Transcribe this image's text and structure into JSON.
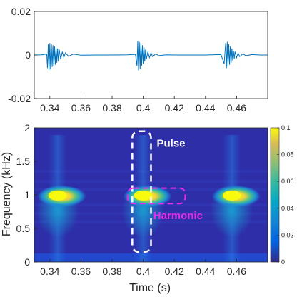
{
  "chart_data": [
    {
      "type": "line",
      "series": [
        {
          "description_free": true,
          "x": [
            0.33,
            0.335,
            0.338,
            0.3385,
            0.339,
            0.3395,
            0.34,
            0.3405,
            0.341,
            0.3415,
            0.342,
            0.3425,
            0.343,
            0.3435,
            0.344,
            0.3445,
            0.345,
            0.3455,
            0.346,
            0.347,
            0.348,
            0.349,
            0.35,
            0.352,
            0.355,
            0.36,
            0.37,
            0.38,
            0.39,
            0.395,
            0.396,
            0.3965,
            0.397,
            0.3975,
            0.398,
            0.3985,
            0.399,
            0.3995,
            0.4,
            0.4005,
            0.401,
            0.4015,
            0.402,
            0.403,
            0.404,
            0.405,
            0.406,
            0.408,
            0.41,
            0.415,
            0.42,
            0.43,
            0.44,
            0.45,
            0.452,
            0.453,
            0.4535,
            0.454,
            0.4545,
            0.455,
            0.4555,
            0.456,
            0.4565,
            0.457,
            0.4575,
            0.458,
            0.4585,
            0.459,
            0.46,
            0.461,
            0.462,
            0.464,
            0.466,
            0.47,
            0.475,
            0.48
          ],
          "y": [
            0.0,
            0.0001,
            0.0005,
            -0.006,
            0.005,
            -0.007,
            0.0055,
            -0.0065,
            0.005,
            -0.0055,
            0.0045,
            -0.005,
            0.004,
            -0.0045,
            0.0035,
            -0.0035,
            0.003,
            -0.003,
            0.0025,
            -0.002,
            0.0015,
            -0.0012,
            0.001,
            -0.0006,
            0.0004,
            -0.0001,
            0.0,
            0.0,
            0.0001,
            0.0003,
            -0.005,
            0.0065,
            -0.007,
            0.006,
            -0.0065,
            0.0055,
            -0.005,
            0.0045,
            -0.004,
            0.0035,
            -0.003,
            0.0025,
            -0.002,
            0.0015,
            -0.0012,
            0.001,
            -0.0007,
            0.0005,
            -0.0003,
            0.0001,
            0.0,
            0.0,
            0.0,
            0.0002,
            -0.004,
            0.0055,
            -0.006,
            0.006,
            -0.0055,
            0.005,
            -0.0045,
            0.004,
            -0.0035,
            0.003,
            -0.0025,
            0.002,
            -0.0018,
            0.0015,
            -0.0012,
            0.0009,
            -0.0007,
            0.0005,
            -0.0003,
            0.0002,
            0.0,
            0.0
          ]
        }
      ],
      "xlim": [
        0.33,
        0.48
      ],
      "ylim": [
        -0.02,
        0.02
      ],
      "xticks": [
        "0.34",
        "0.36",
        "0.38",
        "0.4",
        "0.42",
        "0.44",
        "0.46"
      ],
      "yticks": [
        "0.02",
        "0",
        "-0.02"
      ],
      "color": "#0072BD"
    },
    {
      "type": "heatmap",
      "xlim": [
        0.33,
        0.48
      ],
      "ylim": [
        0,
        2
      ],
      "xticks": [
        "0.34",
        "0.36",
        "0.38",
        "0.4",
        "0.42",
        "0.44",
        "0.46"
      ],
      "yticks": [
        "2",
        "1.5",
        "1",
        "0.5",
        "0"
      ],
      "xlabel": "Time (s)",
      "ylabel": "Frequency (kHz)",
      "colormap": "parula",
      "clim": [
        0,
        0.1
      ],
      "colorbar_ticks": [
        "0.1",
        "0.08",
        "0.06",
        "0.04",
        "0.02",
        "0"
      ],
      "hotspots": [
        {
          "t": 0.345,
          "f_khz": 0.98,
          "value": 0.1
        },
        {
          "t": 0.4,
          "f_khz": 0.98,
          "value": 0.1
        },
        {
          "t": 0.457,
          "f_khz": 0.98,
          "value": 0.1
        }
      ],
      "annotations": [
        {
          "text": "Pulse",
          "color": "#ffffff",
          "t_range": [
            0.393,
            0.405
          ],
          "f_range": [
            0.15,
            1.95
          ]
        },
        {
          "text": "Harmonic",
          "color": "#e52ee5",
          "t_range": [
            0.39,
            0.427
          ],
          "f_range": [
            0.87,
            1.1
          ]
        }
      ]
    }
  ]
}
